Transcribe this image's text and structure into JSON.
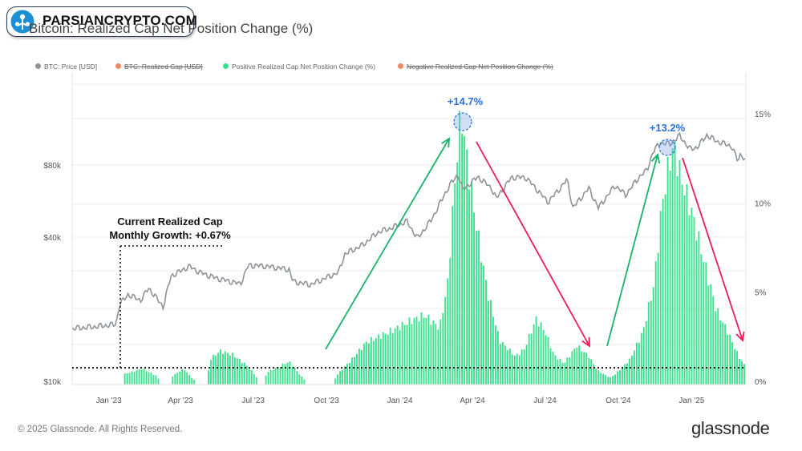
{
  "watermark": {
    "text": "PARSIANCRYPTO.COM"
  },
  "title": "Bitcoin: Realized Cap Net Position Change (%)",
  "legend": [
    {
      "label": "BTC: Price [USD]",
      "color": "#8e9499",
      "struck": false
    },
    {
      "label": "BTC: Realized Cap [USD]",
      "color": "#f08a66",
      "struck": true
    },
    {
      "label": "Positive Realized Cap Net Position Change (%)",
      "color": "#3ee08f",
      "struck": false
    },
    {
      "label": "Negative Realized Cap Net Position Change (%)",
      "color": "#f08a66",
      "struck": true
    }
  ],
  "footer": {
    "copyright": "© 2025 Glassnode. All Rights Reserved.",
    "brand": "glassnode"
  },
  "annotations": {
    "peak1_label": "+14.7%",
    "peak2_label": "+13.2%",
    "growth_line1": "Current Realized Cap",
    "growth_line2": "Monthly Growth: +0.67%"
  },
  "colors": {
    "price": "#8e9499",
    "bars": "#3ee08f",
    "up_arrow": "#19b36b",
    "down_arrow": "#ee1d5a",
    "peak_label": "#2a6ee0"
  },
  "chart_data": {
    "type": "line",
    "title": "Bitcoin: Realized Cap Net Position Change (%)",
    "x_range": [
      "2022-11-16",
      "2025-03-10"
    ],
    "x_ticks": [
      {
        "date": "2023-01-01",
        "label": "Jan '23"
      },
      {
        "date": "2023-04-01",
        "label": "Apr '23"
      },
      {
        "date": "2023-07-01",
        "label": "Jul '23"
      },
      {
        "date": "2023-10-01",
        "label": "Oct '23"
      },
      {
        "date": "2024-01-01",
        "label": "Jan '24"
      },
      {
        "date": "2024-04-01",
        "label": "Apr '24"
      },
      {
        "date": "2024-07-01",
        "label": "Jul '24"
      },
      {
        "date": "2024-10-01",
        "label": "Oct '24"
      },
      {
        "date": "2025-01-01",
        "label": "Jan '25"
      }
    ],
    "y_left": {
      "scale": "log",
      "ticks": [
        {
          "value": 10000,
          "label": "$10k"
        },
        {
          "value": 40000,
          "label": "$40k"
        },
        {
          "value": 80000,
          "label": "$80k"
        }
      ]
    },
    "y_right": {
      "scale": "linear",
      "range": [
        0,
        18
      ],
      "ticks": [
        {
          "value": 0,
          "label": "0%"
        },
        {
          "value": 5,
          "label": "5%"
        },
        {
          "value": 10,
          "label": "10%"
        },
        {
          "value": 15,
          "label": "15%"
        }
      ]
    },
    "reference_line_pct": 0.67,
    "series": [
      {
        "name": "BTC: Price [USD]",
        "axis": "left",
        "points": [
          [
            "2022-11-16",
            16600
          ],
          [
            "2022-12-15",
            16900
          ],
          [
            "2023-01-10",
            17300
          ],
          [
            "2023-01-14",
            20800
          ],
          [
            "2023-01-25",
            23000
          ],
          [
            "2023-02-10",
            21800
          ],
          [
            "2023-02-20",
            24500
          ],
          [
            "2023-03-10",
            20500
          ],
          [
            "2023-03-20",
            27500
          ],
          [
            "2023-04-12",
            30200
          ],
          [
            "2023-04-25",
            28500
          ],
          [
            "2023-05-15",
            27000
          ],
          [
            "2023-06-15",
            25500
          ],
          [
            "2023-06-25",
            30500
          ],
          [
            "2023-07-15",
            30300
          ],
          [
            "2023-08-15",
            29300
          ],
          [
            "2023-08-20",
            26100
          ],
          [
            "2023-09-11",
            25300
          ],
          [
            "2023-09-30",
            27000
          ],
          [
            "2023-10-16",
            28500
          ],
          [
            "2023-10-24",
            34000
          ],
          [
            "2023-11-15",
            37000
          ],
          [
            "2023-12-05",
            42000
          ],
          [
            "2023-12-20",
            43500
          ],
          [
            "2024-01-10",
            46500
          ],
          [
            "2024-01-23",
            39500
          ],
          [
            "2024-02-10",
            47500
          ],
          [
            "2024-02-28",
            62000
          ],
          [
            "2024-03-05",
            67000
          ],
          [
            "2024-03-14",
            73000
          ],
          [
            "2024-03-20",
            63000
          ],
          [
            "2024-04-08",
            71500
          ],
          [
            "2024-04-25",
            64000
          ],
          [
            "2024-05-01",
            58000
          ],
          [
            "2024-05-20",
            71000
          ],
          [
            "2024-06-07",
            71000
          ],
          [
            "2024-06-25",
            61000
          ],
          [
            "2024-07-05",
            56000
          ],
          [
            "2024-07-29",
            69500
          ],
          [
            "2024-08-05",
            53000
          ],
          [
            "2024-08-25",
            64000
          ],
          [
            "2024-09-06",
            53000
          ],
          [
            "2024-09-27",
            65800
          ],
          [
            "2024-10-10",
            60000
          ],
          [
            "2024-10-29",
            72500
          ],
          [
            "2024-11-06",
            76000
          ],
          [
            "2024-11-13",
            90000
          ],
          [
            "2024-11-22",
            99000
          ],
          [
            "2024-12-05",
            98000
          ],
          [
            "2024-12-17",
            106000
          ],
          [
            "2024-12-30",
            93000
          ],
          [
            "2025-01-08",
            95000
          ],
          [
            "2025-01-20",
            106500
          ],
          [
            "2025-02-03",
            100000
          ],
          [
            "2025-02-20",
            96000
          ],
          [
            "2025-02-28",
            83000
          ],
          [
            "2025-03-04",
            90000
          ],
          [
            "2025-03-10",
            82000
          ]
        ]
      },
      {
        "name": "Positive Realized Cap Net Position Change (%)",
        "axis": "right",
        "type": "bar",
        "points": [
          [
            "2022-11-16",
            0
          ],
          [
            "2023-01-18",
            0
          ],
          [
            "2023-01-20",
            0.4
          ],
          [
            "2023-02-12",
            0.7
          ],
          [
            "2023-03-02",
            0.3
          ],
          [
            "2023-03-06",
            0
          ],
          [
            "2023-03-20",
            0
          ],
          [
            "2023-03-22",
            0.3
          ],
          [
            "2023-04-05",
            0.7
          ],
          [
            "2023-04-15",
            0.2
          ],
          [
            "2023-04-20",
            0
          ],
          [
            "2023-05-05",
            0
          ],
          [
            "2023-05-07",
            1.2
          ],
          [
            "2023-05-20",
            1.7
          ],
          [
            "2023-06-05",
            1.5
          ],
          [
            "2023-06-20",
            1.0
          ],
          [
            "2023-07-01",
            0.5
          ],
          [
            "2023-07-08",
            0
          ],
          [
            "2023-07-15",
            0
          ],
          [
            "2023-07-18",
            0.5
          ],
          [
            "2023-08-01",
            0.8
          ],
          [
            "2023-08-15",
            1.1
          ],
          [
            "2023-09-01",
            0.2
          ],
          [
            "2023-09-05",
            0
          ],
          [
            "2023-10-10",
            0
          ],
          [
            "2023-10-15",
            0.4
          ],
          [
            "2023-11-01",
            1.2
          ],
          [
            "2023-11-20",
            2.2
          ],
          [
            "2023-12-20",
            2.8
          ],
          [
            "2024-01-15",
            3.4
          ],
          [
            "2024-02-01",
            3.7
          ],
          [
            "2024-02-20",
            3.0
          ],
          [
            "2024-03-01",
            5.5
          ],
          [
            "2024-03-08",
            10.0
          ],
          [
            "2024-03-15",
            14.0
          ],
          [
            "2024-03-19",
            14.7
          ],
          [
            "2024-03-25",
            12.5
          ],
          [
            "2024-04-05",
            9.0
          ],
          [
            "2024-04-20",
            5.0
          ],
          [
            "2024-05-05",
            2.3
          ],
          [
            "2024-05-25",
            1.4
          ],
          [
            "2024-06-05",
            1.8
          ],
          [
            "2024-06-20",
            3.5
          ],
          [
            "2024-07-01",
            2.8
          ],
          [
            "2024-07-12",
            1.5
          ],
          [
            "2024-07-25",
            1.0
          ],
          [
            "2024-08-10",
            2.0
          ],
          [
            "2024-08-25",
            1.4
          ],
          [
            "2024-09-05",
            0.6
          ],
          [
            "2024-09-20",
            0.2
          ],
          [
            "2024-09-27",
            0.4
          ],
          [
            "2024-10-15",
            1.2
          ],
          [
            "2024-11-01",
            2.8
          ],
          [
            "2024-11-15",
            5.5
          ],
          [
            "2024-11-25",
            10.0
          ],
          [
            "2024-12-05",
            12.5
          ],
          [
            "2024-12-10",
            13.2
          ],
          [
            "2024-12-18",
            11.5
          ],
          [
            "2025-01-01",
            9.5
          ],
          [
            "2025-01-15",
            7.0
          ],
          [
            "2025-02-01",
            4.0
          ],
          [
            "2025-02-15",
            2.8
          ],
          [
            "2025-03-01",
            1.4
          ],
          [
            "2025-03-10",
            0.8
          ]
        ]
      }
    ]
  }
}
